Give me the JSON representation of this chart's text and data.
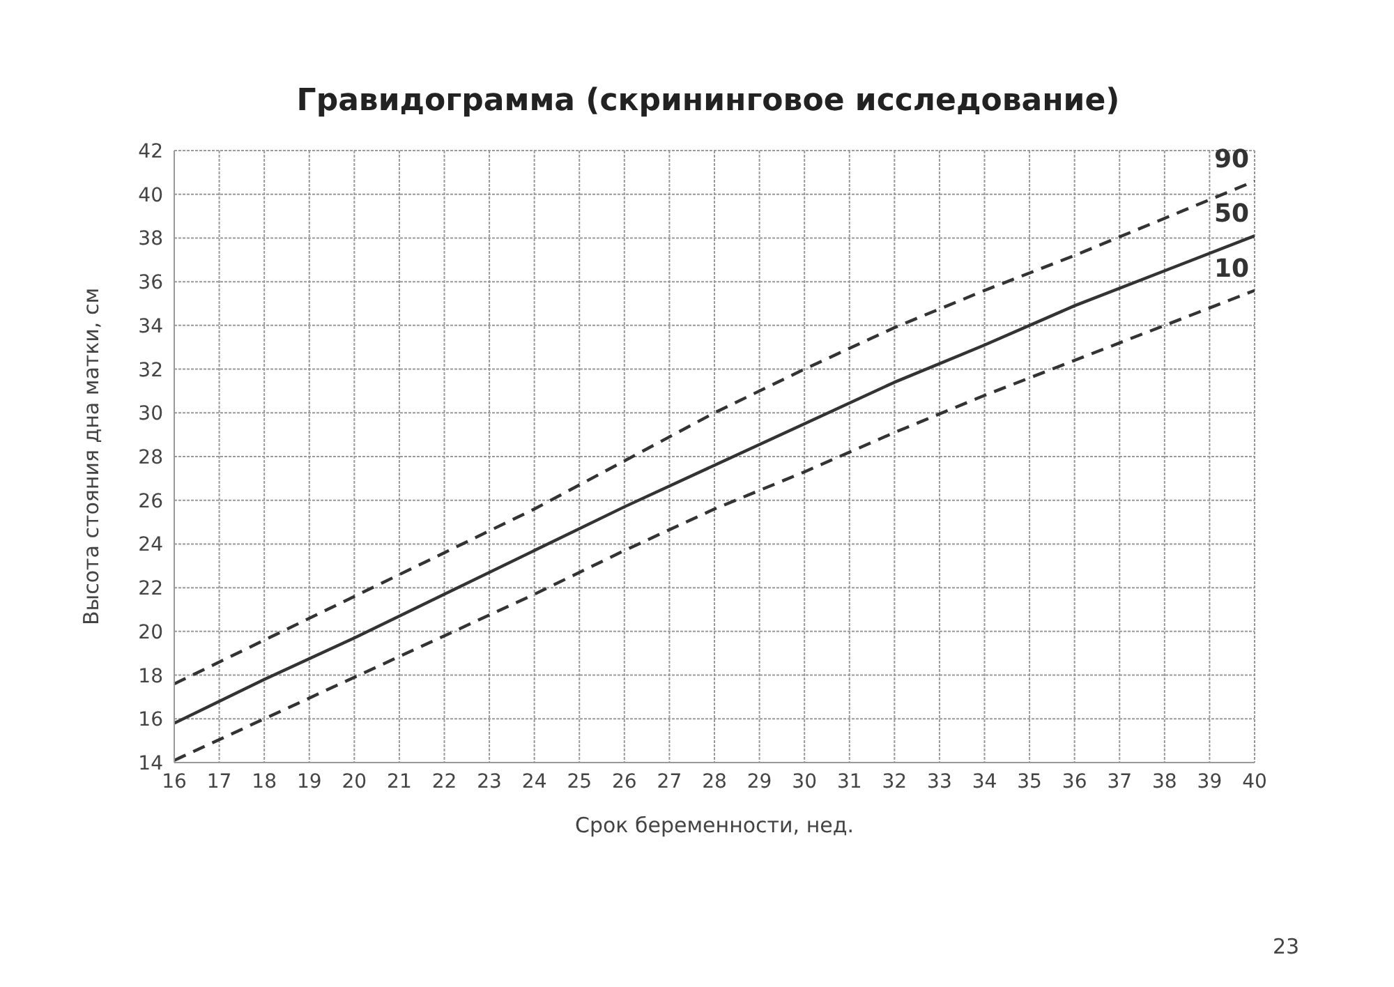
{
  "chart_data": {
    "type": "line",
    "title": "Гравидограмма (скрининговое исследование)",
    "xlabel": "Срок беременности, нед.",
    "ylabel": "Высота стояния дна матки, см",
    "x": [
      16,
      18,
      20,
      22,
      24,
      26,
      28,
      30,
      32,
      34,
      36,
      38,
      40
    ],
    "series": [
      {
        "name": "90",
        "color": "#333333",
        "line_style": "dashed",
        "values": [
          17.6,
          19.6,
          21.6,
          23.6,
          25.6,
          27.8,
          30,
          32,
          33.9,
          35.6,
          37.2,
          38.9,
          40.6
        ]
      },
      {
        "name": "50",
        "color": "#333333",
        "line_style": "solid",
        "values": [
          15.8,
          17.8,
          19.7,
          21.7,
          23.7,
          25.7,
          27.6,
          29.5,
          31.4,
          33.1,
          34.9,
          36.5,
          38.1
        ]
      },
      {
        "name": "10",
        "color": "#333333",
        "line_style": "dashed",
        "values": [
          14.1,
          16,
          17.9,
          19.8,
          21.7,
          23.7,
          25.6,
          27.3,
          29.1,
          30.8,
          32.4,
          34,
          35.6
        ]
      }
    ],
    "xlim": [
      16,
      40
    ],
    "xticks": [
      16,
      17,
      18,
      19,
      20,
      21,
      22,
      23,
      24,
      25,
      26,
      27,
      28,
      29,
      30,
      31,
      32,
      33,
      34,
      35,
      36,
      37,
      38,
      39,
      40
    ],
    "ylim": [
      14,
      42
    ],
    "yticks": [
      14,
      16,
      18,
      20,
      22,
      24,
      26,
      28,
      30,
      32,
      34,
      36,
      38,
      40,
      42
    ],
    "grid": true,
    "legend": false,
    "annotations": [
      "23"
    ]
  }
}
